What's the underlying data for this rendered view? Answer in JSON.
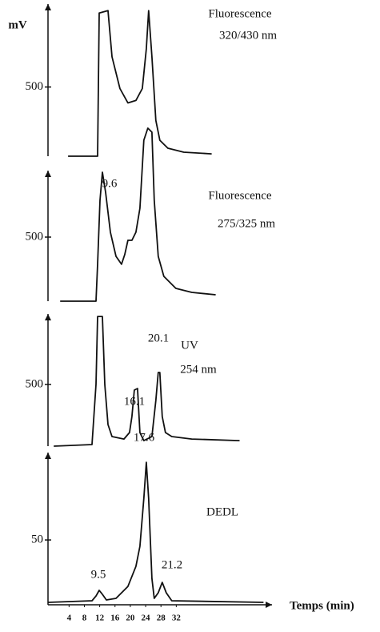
{
  "chart_data": [
    {
      "type": "line",
      "y_label": "mV",
      "annotations": [
        "Fluorescence",
        "320/430 nm"
      ],
      "x": [
        3.75,
        11.46,
        11.88,
        14.17,
        15.21,
        17.29,
        19.38,
        21.46,
        23.13,
        24.17,
        24.79,
        25.63,
        26.67,
        27.71,
        29.79,
        33.96,
        41.25
      ],
      "values": [
        0,
        0,
        1035,
        1052,
        719,
        489,
        385,
        403,
        489,
        776,
        1052,
        719,
        259,
        115,
        58,
        29,
        17
      ],
      "color": "#111111",
      "ylim": [
        0,
        1100
      ],
      "yticks": [
        500
      ]
    },
    {
      "type": "line",
      "annotations": [
        "9.6",
        "Fluorescence",
        "275/325 nm"
      ],
      "x": [
        1.67,
        11.04,
        11.46,
        12.08,
        12.71,
        13.54,
        14.79,
        16.25,
        17.71,
        18.54,
        19.38,
        20.42,
        21.46,
        22.5,
        23.54,
        24.58,
        25.63,
        26.25,
        27.29,
        28.75,
        31.88,
        36.04,
        42.29
      ],
      "values": [
        0,
        0,
        288,
        788,
        1006,
        850,
        538,
        350,
        288,
        363,
        475,
        475,
        538,
        725,
        1256,
        1350,
        1319,
        788,
        350,
        194,
        100,
        69,
        50
      ],
      "color": "#111111",
      "ylim": [
        0,
        1400
      ],
      "yticks": [
        500
      ]
    },
    {
      "type": "line",
      "annotations": [
        "20.1",
        "UV",
        "254 nm",
        "16.1"
      ],
      "x": [
        0,
        10,
        11.04,
        11.46,
        12.71,
        13.33,
        14.17,
        15.21,
        18.33,
        19.79,
        20.42,
        21.04,
        21.88,
        22.5,
        23.54,
        25.63,
        26.67,
        27.29,
        27.71,
        28.33,
        29.17,
        30.83,
        36.04,
        48.54
      ],
      "values": [
        0,
        13,
        500,
        1051,
        1051,
        500,
        175,
        78,
        58,
        110,
        240,
        454,
        467,
        110,
        45,
        78,
        370,
        597,
        597,
        240,
        110,
        78,
        58,
        45
      ],
      "color": "#111111",
      "ylim": [
        0,
        1100
      ],
      "yticks": [
        500
      ]
    },
    {
      "type": "line",
      "annotations": [
        "17.6",
        "DEDL",
        "9.5",
        "21.2"
      ],
      "x_label": "Temps (min)",
      "x": [
        -1.46,
        10,
        11.04,
        11.88,
        12.71,
        13.75,
        16.25,
        19.38,
        21.46,
        22.5,
        23.54,
        24.17,
        24.79,
        25.63,
        26.25,
        27.29,
        28.33,
        29.38,
        30.83,
        54.79
      ],
      "values": [
        0,
        1.3,
        5.1,
        9.6,
        6.4,
        1.9,
        3.2,
        12.8,
        28.8,
        44.9,
        83.3,
        112.2,
        83.3,
        19.2,
        3.2,
        7.7,
        16.0,
        7.7,
        1.3,
        0
      ],
      "color": "#111111",
      "ylim": [
        0,
        120
      ],
      "yticks": [
        50
      ],
      "xlim": [
        -1.5,
        57
      ],
      "xticks": [
        4,
        8,
        12,
        16,
        20,
        24,
        28,
        32
      ]
    }
  ]
}
